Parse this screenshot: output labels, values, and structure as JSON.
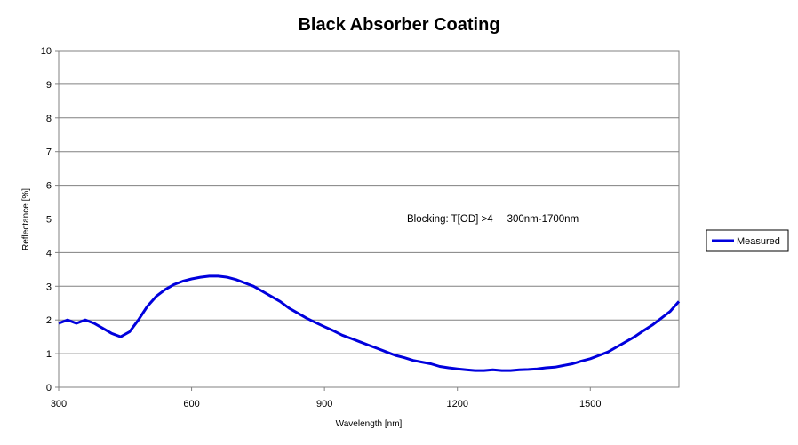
{
  "chart_data": {
    "type": "line",
    "title": "Black Absorber Coating",
    "xlabel": "Wavelength [nm]",
    "ylabel": "Reflectance [%]",
    "xlim": [
      300,
      1700
    ],
    "ylim": [
      0,
      10
    ],
    "x_ticks": [
      300,
      600,
      900,
      1200,
      1500
    ],
    "y_ticks": [
      0,
      1,
      2,
      3,
      4,
      5,
      6,
      7,
      8,
      9,
      10
    ],
    "grid": "horizontal",
    "legend_position": "right",
    "annotation": "Blocking: T[OD] >4     300nm-1700nm",
    "line_color": "#0000dd",
    "series": [
      {
        "name": "Measured",
        "x": [
          300,
          320,
          340,
          360,
          380,
          400,
          420,
          440,
          460,
          480,
          500,
          520,
          540,
          560,
          580,
          600,
          620,
          640,
          660,
          680,
          700,
          720,
          740,
          760,
          780,
          800,
          820,
          840,
          860,
          880,
          900,
          920,
          940,
          960,
          980,
          1000,
          1020,
          1040,
          1060,
          1080,
          1100,
          1120,
          1140,
          1160,
          1180,
          1200,
          1220,
          1240,
          1260,
          1280,
          1300,
          1320,
          1340,
          1360,
          1380,
          1400,
          1420,
          1440,
          1460,
          1480,
          1500,
          1520,
          1540,
          1560,
          1580,
          1600,
          1620,
          1640,
          1660,
          1680,
          1700
        ],
        "y": [
          1.9,
          2.0,
          1.9,
          2.0,
          1.9,
          1.75,
          1.6,
          1.5,
          1.65,
          2.0,
          2.4,
          2.7,
          2.9,
          3.05,
          3.15,
          3.22,
          3.27,
          3.3,
          3.3,
          3.27,
          3.2,
          3.1,
          3.0,
          2.85,
          2.7,
          2.55,
          2.35,
          2.2,
          2.05,
          1.92,
          1.8,
          1.68,
          1.55,
          1.45,
          1.35,
          1.25,
          1.15,
          1.05,
          0.95,
          0.88,
          0.8,
          0.75,
          0.7,
          0.62,
          0.58,
          0.55,
          0.52,
          0.5,
          0.5,
          0.52,
          0.5,
          0.5,
          0.52,
          0.53,
          0.55,
          0.58,
          0.6,
          0.65,
          0.7,
          0.78,
          0.85,
          0.95,
          1.05,
          1.2,
          1.35,
          1.5,
          1.68,
          1.85,
          2.05,
          2.25,
          2.55
        ]
      }
    ]
  }
}
